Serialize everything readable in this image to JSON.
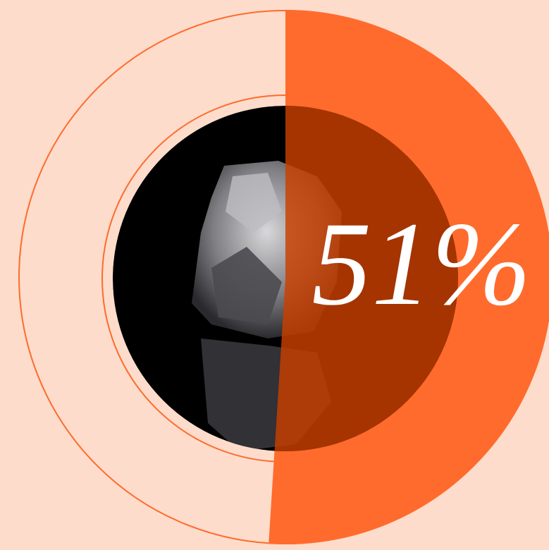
{
  "chart_data": {
    "type": "donut",
    "values": [
      51
    ],
    "value_labels": [
      "51%"
    ],
    "color": "#ff6b2c",
    "ylim": [
      0,
      100
    ]
  }
}
